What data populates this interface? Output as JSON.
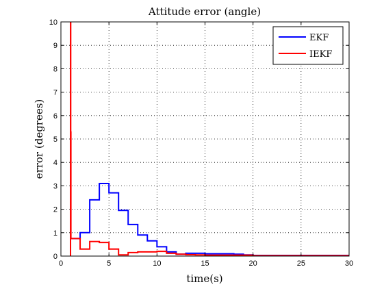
{
  "chart_data": {
    "type": "line",
    "title": "Attitude error (angle)",
    "xlabel": "time(s)",
    "ylabel": "error (degrees)",
    "xlim": [
      0,
      30
    ],
    "ylim": [
      0,
      10
    ],
    "xticks": [
      0,
      5,
      10,
      15,
      20,
      25,
      30
    ],
    "yticks": [
      0,
      1,
      2,
      3,
      4,
      5,
      6,
      7,
      8,
      9,
      10
    ],
    "grid": true,
    "grid_style": "dotted",
    "legend_position": "top-right",
    "step": true,
    "series": [
      {
        "name": "EKF",
        "color": "#0000ff",
        "x": [
          1,
          2,
          3,
          4,
          5,
          6,
          7,
          8,
          9,
          10,
          11,
          12,
          13,
          14,
          15,
          16,
          17,
          18,
          19,
          20,
          30
        ],
        "y": [
          0.75,
          1.0,
          2.4,
          3.1,
          2.7,
          1.95,
          1.35,
          0.9,
          0.65,
          0.4,
          0.18,
          0.08,
          0.12,
          0.12,
          0.1,
          0.1,
          0.1,
          0.08,
          0.05,
          0.03,
          0.03
        ]
      },
      {
        "name": "IEKF",
        "color": "#ff0000",
        "x": [
          0.98,
          1.0,
          1.02,
          1.04,
          2,
          3,
          4,
          5,
          6,
          7,
          8,
          9,
          10,
          11,
          12,
          13,
          14,
          15,
          20,
          30
        ],
        "y": [
          0.0,
          10.0,
          5.3,
          0.75,
          0.3,
          0.62,
          0.58,
          0.3,
          0.05,
          0.15,
          0.18,
          0.18,
          0.2,
          0.12,
          0.08,
          0.06,
          0.05,
          0.04,
          0.02,
          0.02
        ]
      }
    ]
  }
}
